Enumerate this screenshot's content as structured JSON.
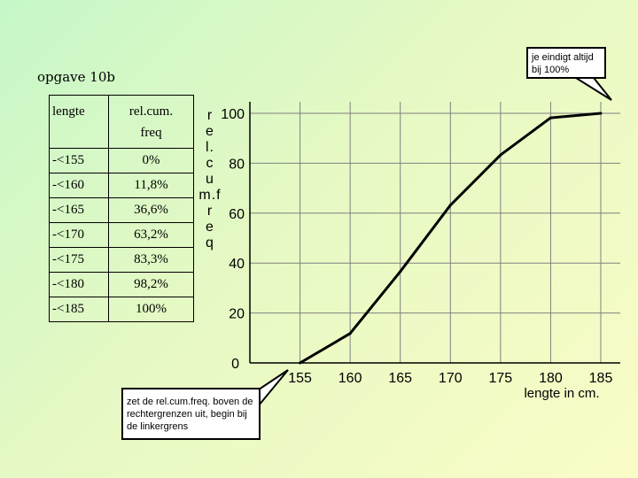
{
  "title": "opgave 10b",
  "table": {
    "headers": [
      "lengte",
      "rel.cum.",
      "freq"
    ],
    "rows": [
      [
        "-<155",
        "0%"
      ],
      [
        "-<160",
        "11,8%"
      ],
      [
        "-<165",
        "36,6%"
      ],
      [
        "-<170",
        "63,2%"
      ],
      [
        "-<175",
        "83,3%"
      ],
      [
        "-<180",
        "98,2%"
      ],
      [
        "-<185",
        "100%"
      ]
    ]
  },
  "ylabel_letters": [
    "r",
    "e",
    "l.",
    "c",
    "u",
    "m.f",
    "r",
    "e",
    "q"
  ],
  "callouts": {
    "top": "je eindigt altijd bij 100%",
    "bottom": "zet de rel.cum.freq. boven de rechtergrenzen uit, begin bij de linkergrens"
  },
  "chart_data": {
    "type": "line",
    "x": [
      155,
      160,
      165,
      170,
      175,
      180,
      185
    ],
    "y": [
      0,
      11.8,
      36.6,
      63.2,
      83.3,
      98.2,
      100
    ],
    "x_ticks": [
      "155",
      "160",
      "165",
      "170",
      "175",
      "180",
      "185"
    ],
    "y_ticks": [
      "0",
      "20",
      "40",
      "60",
      "80",
      "100"
    ],
    "xlabel": "lengte in cm.",
    "ylabel": "rel.cum.freq",
    "xlim": [
      150,
      185
    ],
    "ylim": [
      0,
      100
    ],
    "grid": true,
    "line_color": "#000000"
  }
}
